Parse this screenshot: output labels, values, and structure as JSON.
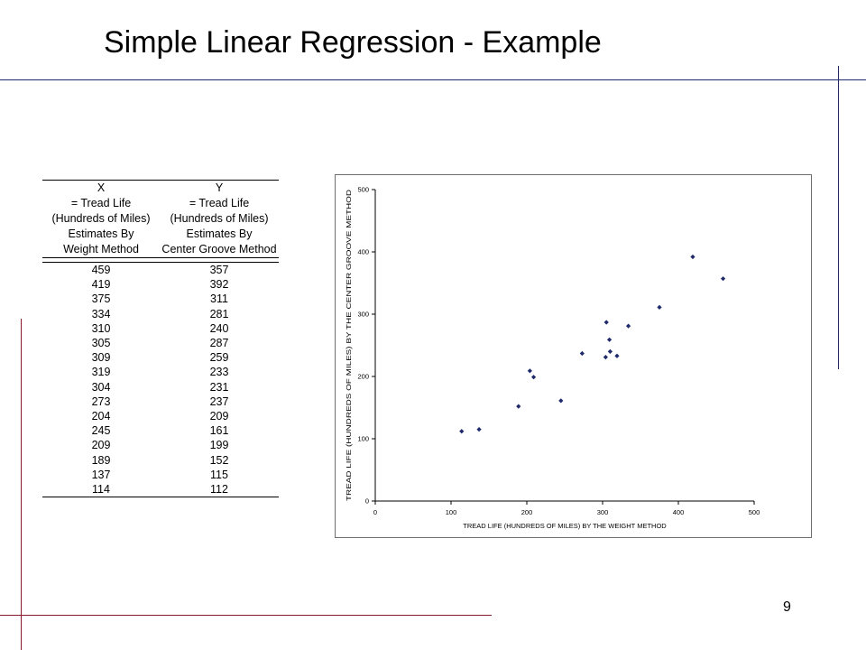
{
  "slide": {
    "title": "Simple Linear Regression - Example",
    "page_number": "9",
    "colors": {
      "rule_navy": "#1f2a6b",
      "rule_maroon": "#8b1a2e",
      "point": "#1f2a6b"
    }
  },
  "table": {
    "header_x": [
      "X",
      "= Tread Life",
      "(Hundreds of Miles)",
      "Estimates By",
      "Weight Method"
    ],
    "header_y": [
      "Y",
      "= Tread Life",
      "(Hundreds of Miles)",
      "Estimates By",
      "Center Groove Method"
    ],
    "rows": [
      [
        "459",
        "357"
      ],
      [
        "419",
        "392"
      ],
      [
        "375",
        "311"
      ],
      [
        "334",
        "281"
      ],
      [
        "310",
        "240"
      ],
      [
        "305",
        "287"
      ],
      [
        "309",
        "259"
      ],
      [
        "319",
        "233"
      ],
      [
        "304",
        "231"
      ],
      [
        "273",
        "237"
      ],
      [
        "204",
        "209"
      ],
      [
        "245",
        "161"
      ],
      [
        "209",
        "199"
      ],
      [
        "189",
        "152"
      ],
      [
        "137",
        "115"
      ],
      [
        "114",
        "112"
      ]
    ]
  },
  "chart_data": {
    "type": "scatter",
    "title": "",
    "xlabel": "TREAD LIFE (HUNDREDS OF MILES) BY THE WEIGHT METHOD",
    "ylabel": "TREAD LIFE (HUNDREDS OF MILES) BY THE CENTER GROOVE METHOD",
    "xlim": [
      0,
      500
    ],
    "ylim": [
      0,
      500
    ],
    "xticks": [
      0,
      100,
      200,
      300,
      400,
      500
    ],
    "yticks": [
      0,
      100,
      200,
      300,
      400,
      500
    ],
    "grid": false,
    "legend": "none",
    "marker": "diamond",
    "x": [
      459,
      419,
      375,
      334,
      310,
      305,
      309,
      319,
      304,
      273,
      204,
      245,
      209,
      189,
      137,
      114
    ],
    "y": [
      357,
      392,
      311,
      281,
      240,
      287,
      259,
      233,
      231,
      237,
      209,
      161,
      199,
      152,
      115,
      112
    ]
  }
}
